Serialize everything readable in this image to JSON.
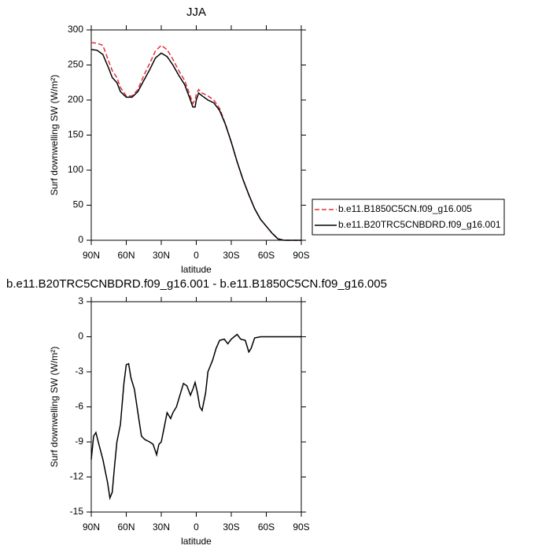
{
  "chart_data": [
    {
      "type": "line",
      "title": "JJA",
      "xlabel": "latitude",
      "ylabel": "Surf downwelling SW (W/m²)",
      "x": [
        90,
        85,
        80,
        75,
        72,
        68,
        65,
        60,
        55,
        50,
        45,
        40,
        35,
        30,
        25,
        20,
        15,
        10,
        5,
        3,
        1,
        0,
        -2,
        -5,
        -10,
        -15,
        -20,
        -25,
        -30,
        -35,
        -40,
        -45,
        -50,
        -55,
        -60,
        -65,
        -70,
        -75,
        -80,
        -90
      ],
      "series": [
        {
          "name": "b.e11.B1850C5CN.f09_g16.005",
          "color": "#e0303c",
          "dash": true,
          "values": [
            282,
            281,
            278,
            255,
            242,
            232,
            218,
            206,
            206,
            215,
            235,
            252,
            270,
            278,
            272,
            258,
            242,
            228,
            205,
            195,
            200,
            208,
            215,
            210,
            206,
            200,
            188,
            166,
            140,
            112,
            87,
            65,
            45,
            30,
            20,
            10,
            2,
            0,
            0,
            0
          ]
        },
        {
          "name": "b.e11.B20TRC5CNBDRD.f09_g16.001",
          "color": "#000000",
          "dash": false,
          "values": [
            272,
            271,
            265,
            245,
            232,
            225,
            212,
            204,
            204,
            212,
            228,
            243,
            260,
            267,
            262,
            250,
            235,
            222,
            200,
            190,
            190,
            200,
            210,
            206,
            200,
            196,
            185,
            165,
            140,
            112,
            87,
            65,
            45,
            30,
            20,
            10,
            2,
            0,
            0,
            0
          ]
        }
      ],
      "xlim": [
        90,
        -90
      ],
      "xticks": [
        {
          "value": 90,
          "label": "90N"
        },
        {
          "value": 60,
          "label": "60N"
        },
        {
          "value": 30,
          "label": "30N"
        },
        0,
        {
          "value": -30,
          "label": "30S"
        },
        {
          "value": -60,
          "label": "60S"
        },
        {
          "value": -90,
          "label": "90S"
        }
      ],
      "ylim": [
        0,
        300
      ],
      "yticks": [
        0,
        50,
        100,
        150,
        200,
        250,
        300
      ],
      "legend": "right"
    },
    {
      "type": "line",
      "title": "b.e11.B20TRC5CNBDRD.f09_g16.001 - b.e11.B1850C5CN.f09_g16.005",
      "xlabel": "latitude",
      "ylabel": "Surf downwelling SW (W/m²)",
      "x": [
        90,
        88,
        86,
        84,
        80,
        76,
        74,
        72,
        70,
        68,
        65,
        62,
        60,
        58,
        56,
        53,
        50,
        47,
        44,
        40,
        37,
        34,
        32,
        30,
        28,
        25,
        22,
        20,
        17,
        14,
        11,
        8,
        5,
        3,
        1,
        -1,
        -3,
        -5,
        -8,
        -10,
        -14,
        -17,
        -20,
        -24,
        -27,
        -30,
        -35,
        -38,
        -42,
        -45,
        -47,
        -50,
        -55,
        -90
      ],
      "values": [
        -10.5,
        -8.5,
        -8.2,
        -9,
        -10.5,
        -12.5,
        -13.8,
        -13.3,
        -11,
        -9,
        -7.5,
        -4,
        -2.4,
        -2.3,
        -3.5,
        -4.5,
        -6.5,
        -8.5,
        -8.8,
        -9,
        -9.2,
        -10.1,
        -9.2,
        -9,
        -8,
        -6.5,
        -7,
        -6.5,
        -6,
        -5,
        -4,
        -4.2,
        -5,
        -4.5,
        -3.9,
        -4.8,
        -6,
        -6.3,
        -4.8,
        -3,
        -2,
        -1,
        -0.3,
        -0.2,
        -0.6,
        -0.2,
        0.2,
        -0.2,
        -0.3,
        -1.3,
        -1,
        -0.1,
        0,
        0
      ],
      "color": "#000000",
      "xlim": [
        90,
        -90
      ],
      "xticks": [
        {
          "value": 90,
          "label": "90N"
        },
        {
          "value": 60,
          "label": "60N"
        },
        {
          "value": 30,
          "label": "30N"
        },
        0,
        {
          "value": -30,
          "label": "30S"
        },
        {
          "value": -60,
          "label": "60S"
        },
        {
          "value": -90,
          "label": "90S"
        }
      ],
      "ylim": [
        -15,
        3
      ],
      "yticks": [
        -15,
        -12,
        -9,
        -6,
        -3,
        0,
        3
      ]
    }
  ]
}
